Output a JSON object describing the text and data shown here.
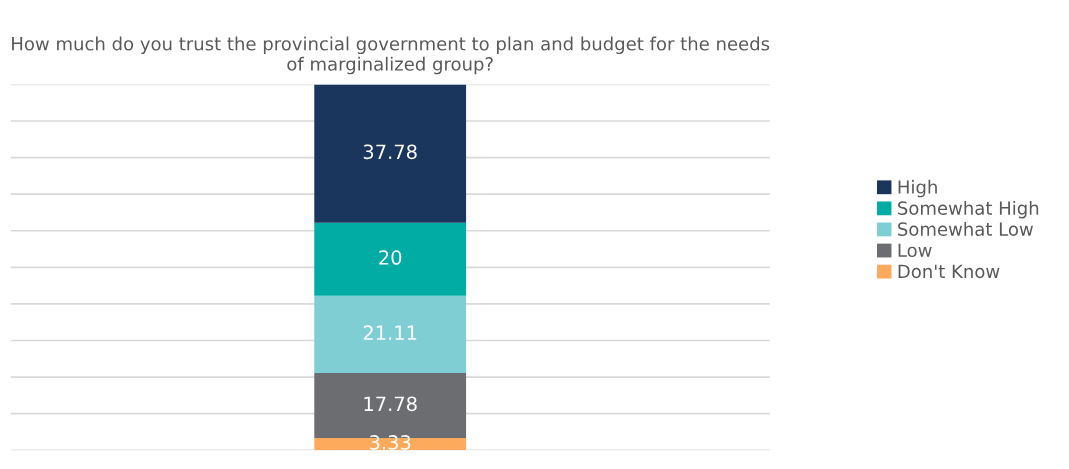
{
  "chart_data": {
    "type": "bar",
    "stacked": true,
    "title": "How much do you trust the provincial government to plan and budget for the needs of marginalized group?",
    "categories": [
      null
    ],
    "series": [
      {
        "name": "Don't Know",
        "color": "#fdaa5c",
        "values": [
          3.33
        ]
      },
      {
        "name": "Low",
        "color": "#6c6d70",
        "values": [
          17.78
        ]
      },
      {
        "name": "Somewhat Low",
        "color": "#7fced4",
        "values": [
          21.11
        ]
      },
      {
        "name": "Somewhat High",
        "color": "#00aca4",
        "values": [
          20
        ]
      },
      {
        "name": "High",
        "color": "#1b365c",
        "values": [
          37.78
        ]
      }
    ],
    "data_labels": true,
    "ylim": [
      0,
      100
    ],
    "yticks": [
      {
        "value": 0,
        "label": null
      },
      {
        "value": 10,
        "label": null
      },
      {
        "value": 20,
        "label": null
      },
      {
        "value": 30,
        "label": null
      },
      {
        "value": 40,
        "label": null
      },
      {
        "value": 50,
        "label": null
      },
      {
        "value": 60,
        "label": null
      },
      {
        "value": 70,
        "label": null
      },
      {
        "value": 80,
        "label": null
      },
      {
        "value": 90,
        "label": null
      },
      {
        "value": 100,
        "label": null
      }
    ],
    "grid": "y",
    "legend": "right"
  }
}
